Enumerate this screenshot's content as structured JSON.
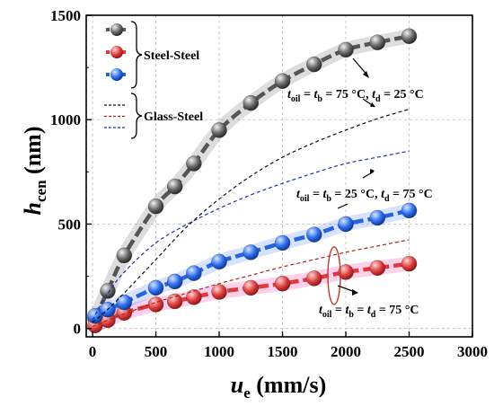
{
  "chart_data": {
    "type": "line",
    "xlabel": {
      "main": "u",
      "sub": "e",
      "unit": " (mm/s)"
    },
    "ylabel": {
      "main": "h",
      "sub": "cen",
      "unit": " (nm)"
    },
    "xlim": [
      -50,
      3000
    ],
    "ylim": [
      -40,
      1500
    ],
    "xticks": [
      "0",
      "500",
      "1000",
      "1500",
      "2000",
      "2500",
      "3000"
    ],
    "yticks": [
      "0",
      "500",
      "1000",
      "1500"
    ],
    "grid": true,
    "legend_groups": [
      {
        "label": "Steel-Steel",
        "entries": [
          "#555555",
          "#e03838",
          "#2563e0"
        ]
      },
      {
        "label": "Glass-Steel",
        "entries": [
          "#111111",
          "#b02020",
          "#1a2fb0"
        ]
      }
    ],
    "series": [
      {
        "style": "marker-line",
        "color": "#555555",
        "x": [
          20,
          120,
          250,
          500,
          650,
          800,
          1000,
          1250,
          1500,
          1750,
          2000,
          2250,
          2500
        ],
        "y": [
          50,
          180,
          350,
          585,
          680,
          790,
          950,
          1080,
          1185,
          1265,
          1335,
          1370,
          1400
        ]
      },
      {
        "style": "marker-line",
        "color": "#e03838",
        "x": [
          20,
          120,
          250,
          500,
          650,
          800,
          1000,
          1250,
          1500,
          1750,
          2000,
          2250,
          2500
        ],
        "y": [
          15,
          40,
          75,
          115,
          130,
          150,
          175,
          195,
          215,
          240,
          270,
          290,
          310
        ]
      },
      {
        "style": "marker-line",
        "color": "#2563e0",
        "x": [
          20,
          120,
          250,
          500,
          650,
          800,
          1000,
          1250,
          1500,
          1750,
          2000,
          2250,
          2500
        ],
        "y": [
          60,
          90,
          125,
          195,
          225,
          265,
          320,
          365,
          410,
          450,
          500,
          530,
          565
        ]
      },
      {
        "style": "dashed",
        "color": "#111111",
        "x": [
          0,
          100,
          250,
          500,
          750,
          1000,
          1250,
          1500,
          1750,
          2000,
          2250,
          2500
        ],
        "y": [
          30,
          80,
          170,
          330,
          490,
          620,
          730,
          820,
          890,
          950,
          1005,
          1050
        ]
      },
      {
        "style": "dashed",
        "color": "#b02020",
        "x": [
          0,
          100,
          250,
          500,
          750,
          1000,
          1250,
          1500,
          1750,
          2000,
          2250,
          2500
        ],
        "y": [
          10,
          35,
          70,
          125,
          170,
          215,
          255,
          295,
          330,
          365,
          395,
          425
        ]
      },
      {
        "style": "dashed",
        "color": "#1a2fb0",
        "x": [
          0,
          100,
          250,
          500,
          750,
          1000,
          1250,
          1500,
          1750,
          2000,
          2250,
          2500
        ],
        "y": [
          40,
          150,
          270,
          410,
          500,
          575,
          640,
          695,
          745,
          790,
          820,
          850
        ]
      }
    ],
    "annotations": [
      {
        "text": "t_oil = t_b = 75 °C, t_d = 25 °C",
        "parts": [
          [
            "t",
            "oil"
          ],
          [
            " = ",
            ""
          ],
          [
            "t",
            "b"
          ],
          [
            " = 75 °C, ",
            ""
          ],
          [
            "t",
            "d"
          ],
          [
            " = 25 °C",
            ""
          ]
        ]
      },
      {
        "text": "t_oil = t_b = 25 °C, t_d = 75 °C",
        "parts": [
          [
            "t",
            "oil"
          ],
          [
            " = ",
            ""
          ],
          [
            "t",
            "b"
          ],
          [
            " = 25 °C, ",
            ""
          ],
          [
            "t",
            "d"
          ],
          [
            " = 75 °C",
            ""
          ]
        ]
      },
      {
        "text": "t_oil = t_b = t_d = 75 °C",
        "parts": [
          [
            "t",
            "oil"
          ],
          [
            " = ",
            ""
          ],
          [
            "t",
            "b"
          ],
          [
            " = ",
            ""
          ],
          [
            "t",
            "d"
          ],
          [
            " = 75 °C",
            ""
          ]
        ]
      }
    ]
  }
}
